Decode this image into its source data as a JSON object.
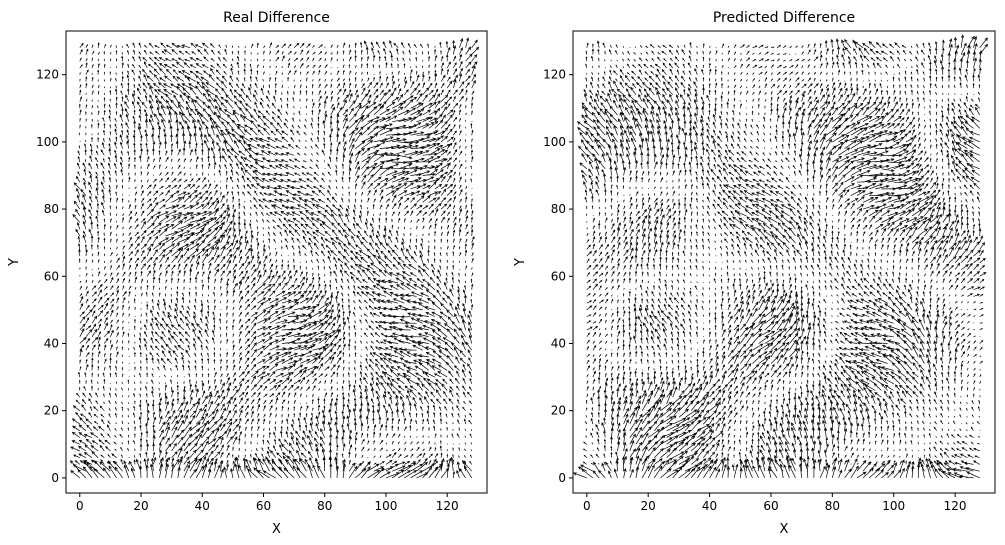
{
  "chart_data": [
    {
      "type": "quiver",
      "title": "Real Difference",
      "xlabel": "X",
      "ylabel": "Y",
      "xlim": [
        -4.5,
        133
      ],
      "ylim": [
        -4.5,
        133
      ],
      "xticks": [
        0,
        20,
        40,
        60,
        80,
        100,
        120
      ],
      "yticks": [
        0,
        20,
        40,
        60,
        80,
        100,
        120
      ],
      "grid": "2x2 spacing over 0-128",
      "arrow_color": "#000000",
      "grid_lines": false
    },
    {
      "type": "quiver",
      "title": "Predicted Difference",
      "xlabel": "X",
      "ylabel": "Y",
      "xlim": [
        -4.5,
        133
      ],
      "ylim": [
        -4.5,
        133
      ],
      "xticks": [
        0,
        20,
        40,
        60,
        80,
        100,
        120
      ],
      "yticks": [
        0,
        20,
        40,
        60,
        80,
        100,
        120
      ],
      "grid": "2x2 spacing over 0-128",
      "arrow_color": "#000000",
      "grid_lines": false
    }
  ]
}
